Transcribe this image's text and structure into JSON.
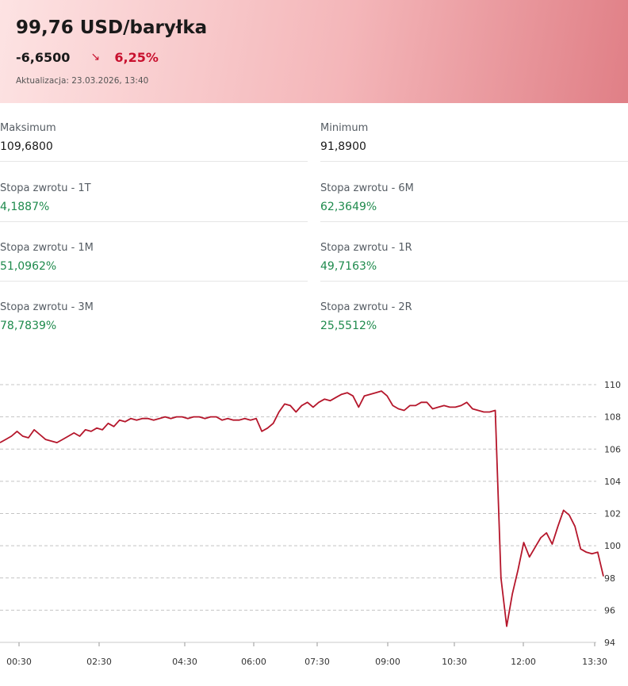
{
  "header": {
    "price": "99,76 USD/baryłka",
    "change_abs": "-6,6500",
    "change_arrow": "↘",
    "change_pct": "6,25%",
    "updated": "Aktualizacja: 23.03.2026, 13:40",
    "colors": {
      "negative": "#c8102e",
      "positive": "#1e8a4c"
    }
  },
  "stats": [
    {
      "label": "Maksimum",
      "value": "109,6800",
      "positive": false
    },
    {
      "label": "Minimum",
      "value": "91,8900",
      "positive": false
    },
    {
      "label": "Stopa zwrotu - 1T",
      "value": "4,1887%",
      "positive": true
    },
    {
      "label": "Stopa zwrotu - 6M",
      "value": "62,3649%",
      "positive": true
    },
    {
      "label": "Stopa zwrotu - 1M",
      "value": "51,0962%",
      "positive": true
    },
    {
      "label": "Stopa zwrotu - 1R",
      "value": "49,7163%",
      "positive": true
    },
    {
      "label": "Stopa zwrotu - 3M",
      "value": "78,7839%",
      "positive": true
    },
    {
      "label": "Stopa zwrotu - 2R",
      "value": "25,5512%",
      "positive": true
    }
  ],
  "chart_data": {
    "type": "line",
    "title": "",
    "xlabel": "",
    "ylabel": "",
    "x_ticks": [
      "00:30",
      "02:30",
      "04:30",
      "06:00",
      "07:30",
      "09:00",
      "10:30",
      "12:00",
      "13:30"
    ],
    "y_ticks": [
      94,
      96,
      98,
      100,
      102,
      104,
      106,
      108,
      110
    ],
    "ylim": [
      94,
      110
    ],
    "grid": true,
    "line_color": "#b5162b",
    "series": [
      {
        "values": [
          106.4,
          106.6,
          106.8,
          107.1,
          106.8,
          106.7,
          107.2,
          106.9,
          106.6,
          106.5,
          106.4,
          106.6,
          106.8,
          107.0,
          106.8,
          107.2,
          107.1,
          107.3,
          107.2,
          107.6,
          107.4,
          107.8,
          107.7,
          107.9,
          107.8,
          107.9,
          107.9,
          107.8,
          107.9,
          108.0,
          107.9,
          108.0,
          108.0,
          107.9,
          108.0,
          108.0,
          107.9,
          108.0,
          108.0,
          107.8,
          107.9,
          107.8,
          107.8,
          107.9,
          107.8,
          107.9,
          107.1,
          107.3,
          107.6,
          108.3,
          108.8,
          108.7,
          108.3,
          108.7,
          108.9,
          108.6,
          108.9,
          109.1,
          109.0,
          109.2,
          109.4,
          109.5,
          109.3,
          108.6,
          109.3,
          109.4,
          109.5,
          109.6,
          109.3,
          108.7,
          108.5,
          108.4,
          108.7,
          108.7,
          108.9,
          108.9,
          108.5,
          108.6,
          108.7,
          108.6,
          108.6,
          108.7,
          108.9,
          108.5,
          108.4,
          108.3,
          108.3,
          108.4,
          98.0,
          95.0,
          97.0,
          98.5,
          100.2,
          99.3,
          99.9,
          100.5,
          100.8,
          100.1,
          101.2,
          102.2,
          101.9,
          101.2,
          99.8,
          99.6,
          99.5,
          99.6,
          98.1
        ]
      }
    ]
  }
}
